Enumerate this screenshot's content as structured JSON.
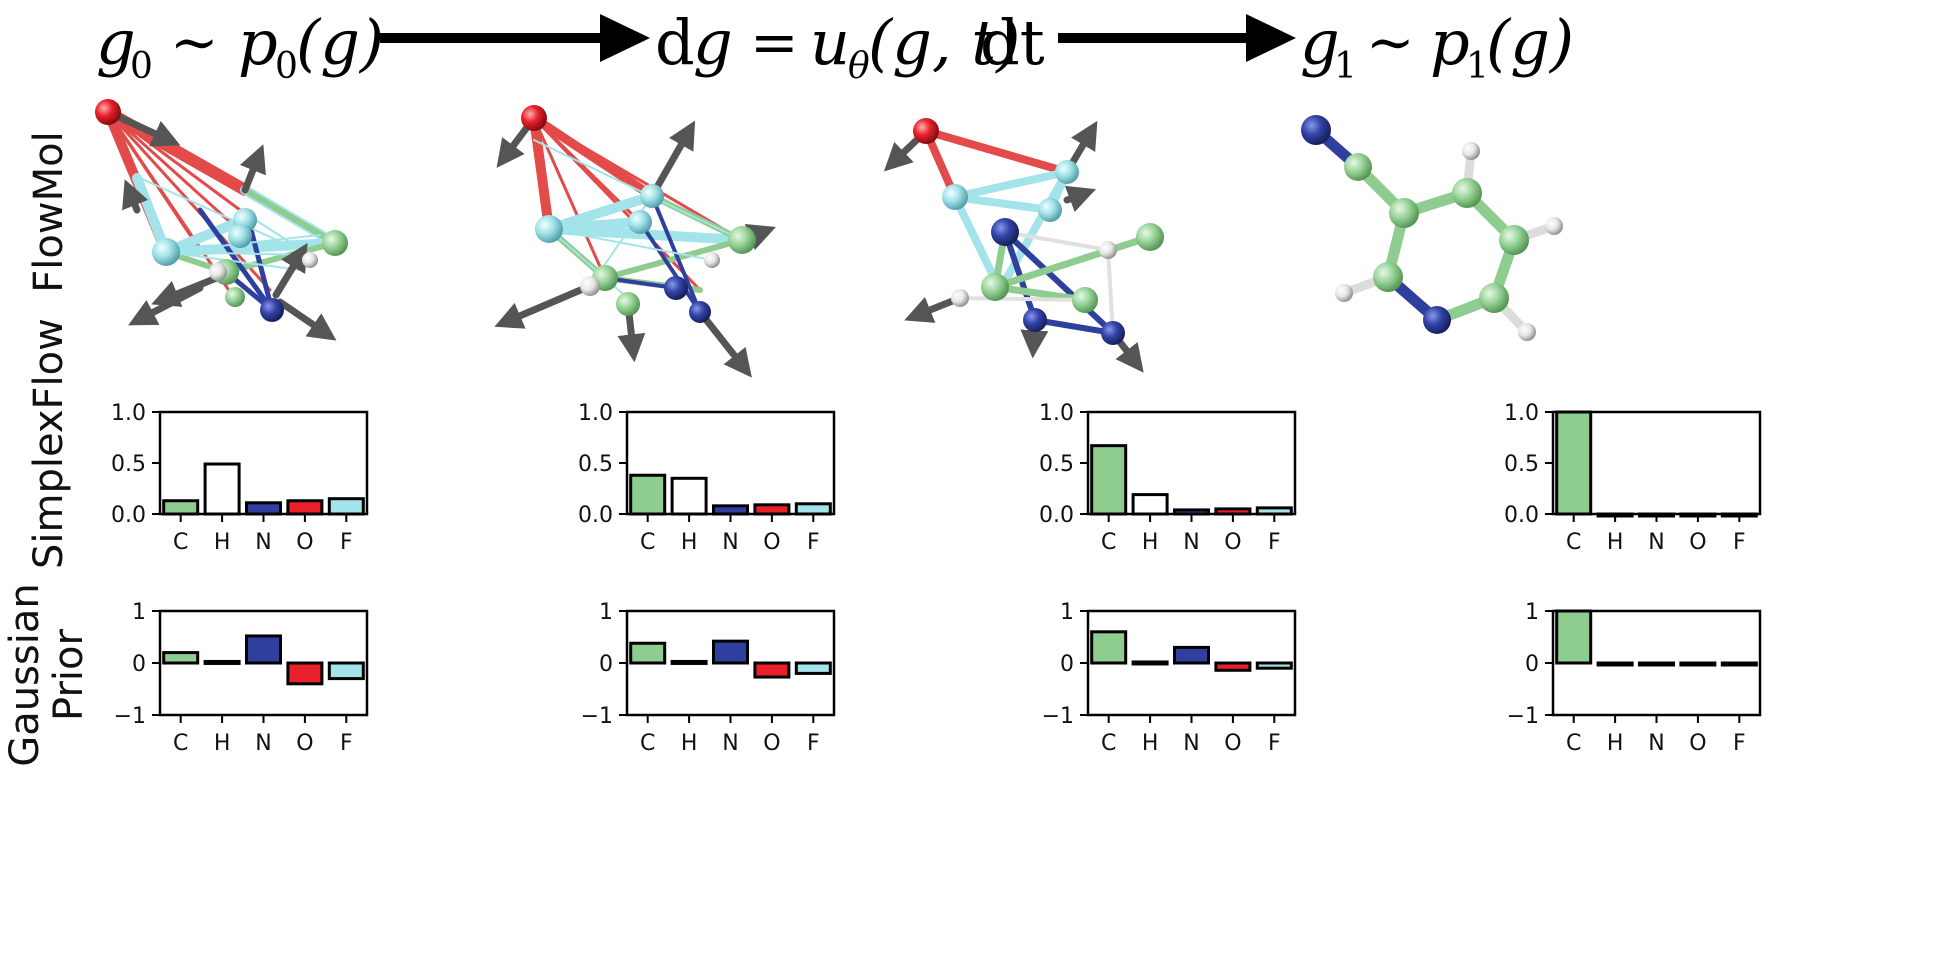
{
  "header": {
    "left": {
      "g": "g",
      "sub": "0",
      "sim": "∼",
      "p": "p",
      "psub": "0",
      "arg": "(g)"
    },
    "middle": {
      "d": "d",
      "g": "g",
      "eq": "=",
      "u": "u",
      "usub": "θ",
      "args": "(g, t)",
      "dt": "dt"
    },
    "right": {
      "g": "g",
      "sub": "1",
      "sim": "∼",
      "p": "p",
      "psub": "1",
      "arg": "(g)"
    }
  },
  "row_labels": {
    "flowmol": "FlowMol",
    "simplexflow": "SimplexFlow",
    "gaussian_line1": "Gaussian",
    "gaussian_line2": "Prior"
  },
  "colors": {
    "C": "#8fcc8f",
    "H": "#ffffff",
    "N": "#2e3f9e",
    "O": "#e8202a",
    "F": "#a3e3ea",
    "arrow": "#606060",
    "frame": "#000000"
  },
  "chart_data": [
    {
      "type": "bar",
      "group": "SimplexFlow",
      "step": 1,
      "categories": [
        "C",
        "H",
        "N",
        "O",
        "F"
      ],
      "values": [
        0.13,
        0.49,
        0.11,
        0.13,
        0.15
      ],
      "ylim": [
        0,
        1
      ],
      "yticks": [
        "0.0",
        "0.5",
        "1.0"
      ],
      "ytick_values": [
        0,
        0.5,
        1
      ]
    },
    {
      "type": "bar",
      "group": "SimplexFlow",
      "step": 2,
      "categories": [
        "C",
        "H",
        "N",
        "O",
        "F"
      ],
      "values": [
        0.38,
        0.35,
        0.08,
        0.09,
        0.1
      ],
      "ylim": [
        0,
        1
      ],
      "yticks": [
        "0.0",
        "0.5",
        "1.0"
      ],
      "ytick_values": [
        0,
        0.5,
        1
      ]
    },
    {
      "type": "bar",
      "group": "SimplexFlow",
      "step": 3,
      "categories": [
        "C",
        "H",
        "N",
        "O",
        "F"
      ],
      "values": [
        0.67,
        0.19,
        0.04,
        0.05,
        0.06
      ],
      "ylim": [
        0,
        1
      ],
      "yticks": [
        "0.0",
        "0.5",
        "1.0"
      ],
      "ytick_values": [
        0,
        0.5,
        1
      ]
    },
    {
      "type": "bar",
      "group": "SimplexFlow",
      "step": 4,
      "categories": [
        "C",
        "H",
        "N",
        "O",
        "F"
      ],
      "values": [
        1.0,
        0.0,
        0.0,
        0.0,
        0.0
      ],
      "ylim": [
        0,
        1
      ],
      "yticks": [
        "0.0",
        "0.5",
        "1.0"
      ],
      "ytick_values": [
        0,
        0.5,
        1
      ]
    },
    {
      "type": "bar",
      "group": "Gaussian Prior",
      "step": 1,
      "categories": [
        "C",
        "H",
        "N",
        "O",
        "F"
      ],
      "values": [
        0.2,
        0.03,
        0.52,
        -0.4,
        -0.3
      ],
      "ylim": [
        -1,
        1
      ],
      "yticks": [
        "−1",
        "0",
        "1"
      ],
      "ytick_values": [
        -1,
        0,
        1
      ]
    },
    {
      "type": "bar",
      "group": "Gaussian Prior",
      "step": 2,
      "categories": [
        "C",
        "H",
        "N",
        "O",
        "F"
      ],
      "values": [
        0.38,
        0.03,
        0.42,
        -0.27,
        -0.2
      ],
      "ylim": [
        -1,
        1
      ],
      "yticks": [
        "−1",
        "0",
        "1"
      ],
      "ytick_values": [
        -1,
        0,
        1
      ]
    },
    {
      "type": "bar",
      "group": "Gaussian Prior",
      "step": 3,
      "categories": [
        "C",
        "H",
        "N",
        "O",
        "F"
      ],
      "values": [
        0.6,
        0.02,
        0.3,
        -0.14,
        -0.1
      ],
      "ylim": [
        -1,
        1
      ],
      "yticks": [
        "−1",
        "0",
        "1"
      ],
      "ytick_values": [
        -1,
        0,
        1
      ]
    },
    {
      "type": "bar",
      "group": "Gaussian Prior",
      "step": 4,
      "categories": [
        "C",
        "H",
        "N",
        "O",
        "F"
      ],
      "values": [
        1.0,
        0.0,
        0.0,
        0.0,
        0.0
      ],
      "ylim": [
        -1,
        1
      ],
      "yticks": [
        "−1",
        "0",
        "1"
      ],
      "ytick_values": [
        -1,
        0,
        1
      ]
    }
  ]
}
